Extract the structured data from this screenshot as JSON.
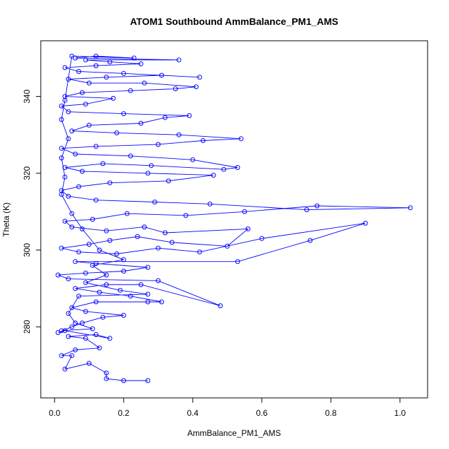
{
  "chart_data": {
    "type": "scatter",
    "title": "ATOM1 Southbound AmmBalance_PM1_AMS",
    "xlabel": "AmmBalance_PM1_AMS",
    "ylabel": "Theta (K)",
    "xlim": [
      -0.04,
      1.08
    ],
    "ylim": [
      261.5,
      354.5
    ],
    "xticks": [
      0.0,
      0.2,
      0.4,
      0.6,
      0.8,
      1.0
    ],
    "xtick_labels": [
      "0.0",
      "0.2",
      "0.4",
      "0.6",
      "0.8",
      "1.0"
    ],
    "yticks": [
      280,
      300,
      320,
      340
    ],
    "ytick_labels": [
      "280",
      "300",
      "320",
      "340"
    ],
    "grid": false,
    "marker": "open-circle",
    "connected": true,
    "color": "#0000ff",
    "series": [
      {
        "points": [
          [
            0.27,
            266.0
          ],
          [
            0.2,
            266.0
          ],
          [
            0.15,
            266.5
          ],
          [
            0.15,
            268.0
          ],
          [
            0.1,
            270.5
          ],
          [
            0.03,
            269.0
          ],
          [
            0.05,
            272.5
          ],
          [
            0.02,
            272.5
          ],
          [
            0.06,
            274.0
          ],
          [
            0.13,
            274.5
          ],
          [
            0.09,
            277.0
          ],
          [
            0.04,
            277.5
          ],
          [
            0.12,
            278.0
          ],
          [
            0.16,
            277.0
          ],
          [
            0.03,
            279.0
          ],
          [
            0.01,
            278.5
          ],
          [
            0.05,
            280.0
          ],
          [
            0.08,
            281.0
          ],
          [
            0.14,
            282.5
          ],
          [
            0.2,
            283.0
          ],
          [
            0.09,
            284.0
          ],
          [
            0.05,
            285.0
          ],
          [
            0.12,
            286.5
          ],
          [
            0.27,
            286.5
          ],
          [
            0.31,
            286.5
          ],
          [
            0.22,
            288.0
          ],
          [
            0.13,
            289.0
          ],
          [
            0.06,
            290.0
          ],
          [
            0.15,
            291.0
          ],
          [
            0.25,
            291.0
          ],
          [
            0.48,
            285.5
          ],
          [
            0.3,
            292.0
          ],
          [
            0.04,
            292.5
          ],
          [
            0.01,
            293.5
          ],
          [
            0.09,
            294.0
          ],
          [
            0.2,
            294.5
          ],
          [
            0.27,
            295.5
          ],
          [
            0.12,
            296.5
          ],
          [
            0.06,
            297.0
          ],
          [
            0.53,
            297.0
          ],
          [
            0.74,
            302.5
          ],
          [
            0.9,
            307.0
          ],
          [
            0.6,
            303.0
          ],
          [
            0.42,
            299.5
          ],
          [
            0.3,
            300.5
          ],
          [
            0.18,
            299.0
          ],
          [
            0.07,
            299.5
          ],
          [
            0.02,
            300.5
          ],
          [
            0.1,
            301.5
          ],
          [
            0.16,
            302.5
          ],
          [
            0.24,
            303.5
          ],
          [
            0.34,
            302.0
          ],
          [
            0.5,
            301.0
          ],
          [
            0.56,
            305.5
          ],
          [
            0.32,
            304.5
          ],
          [
            0.26,
            306.0
          ],
          [
            0.15,
            305.0
          ],
          [
            0.05,
            306.0
          ],
          [
            0.03,
            307.5
          ],
          [
            0.11,
            308.0
          ],
          [
            0.21,
            309.5
          ],
          [
            0.38,
            309.0
          ],
          [
            0.55,
            310.0
          ],
          [
            0.76,
            311.5
          ],
          [
            1.03,
            311.0
          ],
          [
            0.73,
            310.5
          ],
          [
            0.45,
            312.0
          ],
          [
            0.29,
            312.5
          ],
          [
            0.12,
            313.0
          ],
          [
            0.04,
            314.0
          ],
          [
            0.02,
            315.5
          ],
          [
            0.07,
            316.5
          ],
          [
            0.16,
            317.5
          ],
          [
            0.33,
            318.0
          ],
          [
            0.46,
            319.5
          ],
          [
            0.27,
            320.0
          ],
          [
            0.08,
            320.5
          ],
          [
            0.03,
            321.5
          ],
          [
            0.14,
            322.5
          ],
          [
            0.28,
            322.0
          ],
          [
            0.49,
            321.0
          ],
          [
            0.53,
            321.5
          ],
          [
            0.4,
            323.5
          ],
          [
            0.22,
            324.5
          ],
          [
            0.06,
            325.0
          ],
          [
            0.02,
            326.5
          ],
          [
            0.12,
            327.0
          ],
          [
            0.3,
            327.5
          ],
          [
            0.43,
            328.5
          ],
          [
            0.54,
            329.0
          ],
          [
            0.36,
            330.0
          ],
          [
            0.18,
            330.5
          ],
          [
            0.05,
            331.0
          ],
          [
            0.1,
            332.5
          ],
          [
            0.25,
            333.0
          ],
          [
            0.32,
            334.5
          ],
          [
            0.39,
            335.0
          ],
          [
            0.2,
            335.5
          ],
          [
            0.04,
            336.0
          ],
          [
            0.02,
            337.5
          ],
          [
            0.09,
            338.0
          ],
          [
            0.17,
            339.5
          ],
          [
            0.03,
            340.0
          ],
          [
            0.08,
            341.0
          ],
          [
            0.22,
            341.5
          ],
          [
            0.35,
            342.0
          ],
          [
            0.41,
            342.5
          ],
          [
            0.26,
            343.5
          ],
          [
            0.1,
            343.5
          ],
          [
            0.04,
            344.5
          ],
          [
            0.15,
            345.0
          ],
          [
            0.31,
            345.5
          ],
          [
            0.42,
            345.0
          ],
          [
            0.2,
            346.0
          ],
          [
            0.07,
            346.5
          ],
          [
            0.03,
            347.5
          ],
          [
            0.12,
            348.0
          ],
          [
            0.25,
            348.5
          ],
          [
            0.16,
            349.0
          ],
          [
            0.09,
            349.5
          ],
          [
            0.36,
            349.5
          ],
          [
            0.06,
            350.0
          ],
          [
            0.12,
            350.5
          ],
          [
            0.23,
            350.0
          ],
          [
            0.05,
            350.5
          ],
          [
            0.03,
            339.0
          ],
          [
            0.02,
            334.0
          ],
          [
            0.04,
            329.0
          ],
          [
            0.02,
            324.0
          ],
          [
            0.03,
            319.0
          ],
          [
            0.02,
            314.5
          ],
          [
            0.05,
            309.5
          ],
          [
            0.08,
            305.5
          ],
          [
            0.13,
            300.0
          ],
          [
            0.2,
            297.5
          ],
          [
            0.11,
            296.0
          ],
          [
            0.15,
            293.5
          ],
          [
            0.09,
            291.5
          ],
          [
            0.19,
            289.5
          ],
          [
            0.27,
            288.5
          ],
          [
            0.07,
            288.0
          ],
          [
            0.04,
            283.5
          ],
          [
            0.06,
            281.0
          ],
          [
            0.11,
            279.5
          ],
          [
            0.02,
            279.0
          ]
        ]
      }
    ]
  }
}
